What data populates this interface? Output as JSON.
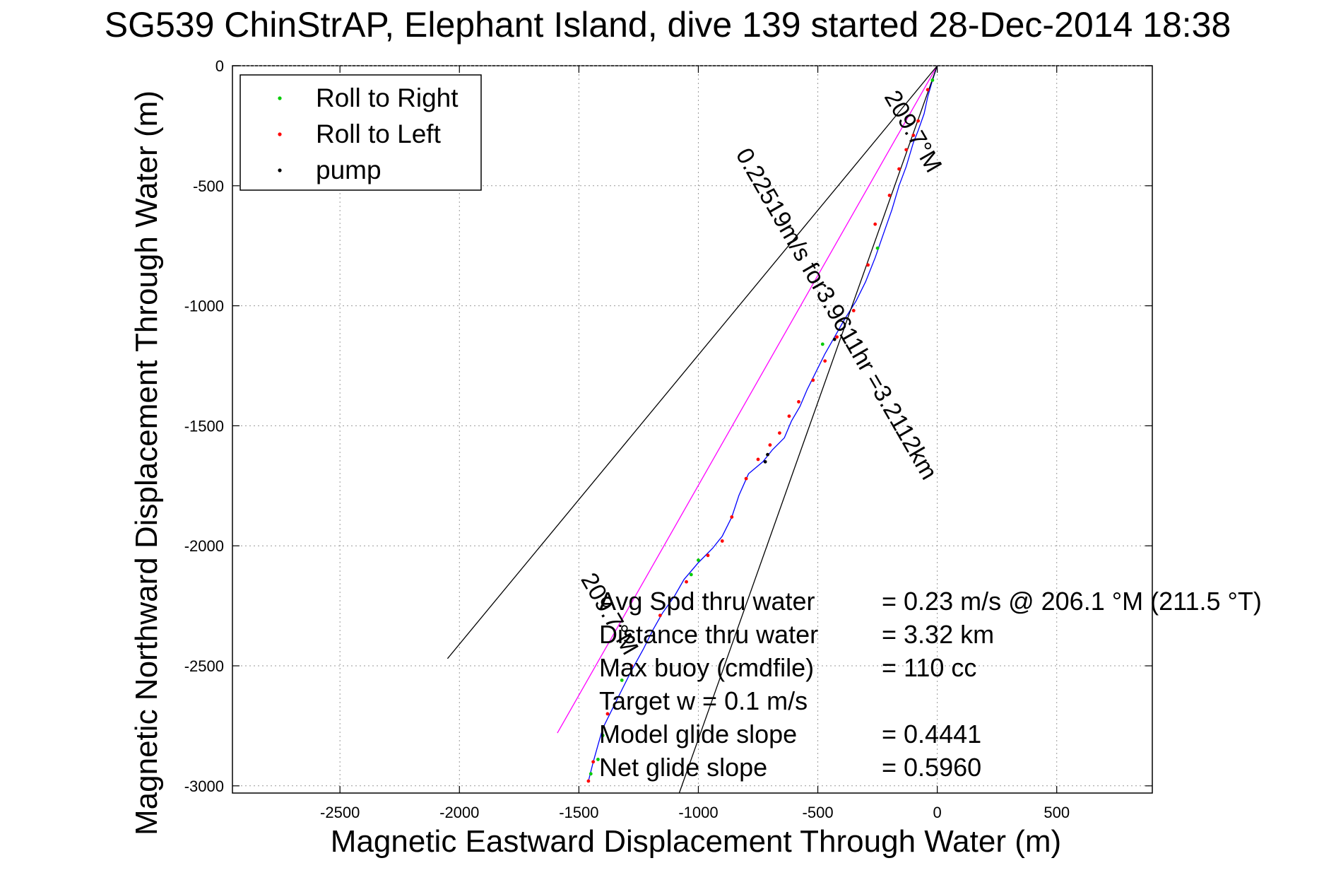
{
  "chart_data": {
    "type": "line",
    "title": "SG539 ChinStrAP, Elephant Island, dive 139 started 28-Dec-2014 18:38",
    "xlabel": "Magnetic Eastward Displacement Through Water (m)",
    "ylabel": "Magnetic Northward Displacement Through Water (m)",
    "xlim": [
      -2950,
      900
    ],
    "ylim": [
      -3030,
      0
    ],
    "xticks": [
      -2500,
      -2000,
      -1500,
      -1000,
      -500,
      0,
      500
    ],
    "yticks": [
      0,
      -500,
      -1000,
      -1500,
      -2000,
      -2500,
      -3000
    ],
    "grid": true,
    "legend_position": "top-left",
    "legend": [
      {
        "label": "Roll to Right",
        "color": "#00cc00"
      },
      {
        "label": "Roll to Left",
        "color": "#ff0000"
      },
      {
        "label": "pump",
        "color": "#000000"
      }
    ],
    "series": [
      {
        "name": "track",
        "color": "#0000ff",
        "points": [
          [
            0,
            0
          ],
          [
            -20,
            -60
          ],
          [
            -40,
            -130
          ],
          [
            -55,
            -200
          ],
          [
            -80,
            -270
          ],
          [
            -100,
            -320
          ],
          [
            -130,
            -420
          ],
          [
            -160,
            -500
          ],
          [
            -190,
            -600
          ],
          [
            -225,
            -700
          ],
          [
            -260,
            -800
          ],
          [
            -300,
            -900
          ],
          [
            -340,
            -980
          ],
          [
            -390,
            -1060
          ],
          [
            -430,
            -1130
          ],
          [
            -470,
            -1200
          ],
          [
            -510,
            -1280
          ],
          [
            -545,
            -1350
          ],
          [
            -575,
            -1420
          ],
          [
            -610,
            -1480
          ],
          [
            -640,
            -1550
          ],
          [
            -690,
            -1600
          ],
          [
            -730,
            -1650
          ],
          [
            -790,
            -1700
          ],
          [
            -830,
            -1790
          ],
          [
            -860,
            -1880
          ],
          [
            -900,
            -1960
          ],
          [
            -940,
            -2010
          ],
          [
            -1000,
            -2070
          ],
          [
            -1060,
            -2140
          ],
          [
            -1100,
            -2210
          ],
          [
            -1150,
            -2280
          ],
          [
            -1190,
            -2350
          ],
          [
            -1230,
            -2430
          ],
          [
            -1280,
            -2520
          ],
          [
            -1320,
            -2600
          ],
          [
            -1360,
            -2680
          ],
          [
            -1400,
            -2760
          ],
          [
            -1420,
            -2830
          ],
          [
            -1440,
            -2900
          ],
          [
            -1460,
            -2980
          ]
        ]
      },
      {
        "name": "heading-line",
        "color": "#ff00ff",
        "points": [
          [
            0,
            0
          ],
          [
            -1590,
            -2780
          ]
        ]
      },
      {
        "name": "cone-outer",
        "color": "#000000",
        "points": [
          [
            0,
            0
          ],
          [
            -2050,
            -2470
          ]
        ]
      },
      {
        "name": "cone-inner",
        "color": "#000000",
        "points": [
          [
            0,
            0
          ],
          [
            -1080,
            -3030
          ]
        ]
      }
    ],
    "markers": [
      {
        "type": "Roll to Right",
        "color": "#00cc00",
        "points": [
          [
            -20,
            -60
          ],
          [
            -250,
            -760
          ],
          [
            -480,
            -1160
          ],
          [
            -1000,
            -2060
          ],
          [
            -1030,
            -2120
          ],
          [
            -1320,
            -2560
          ],
          [
            -1400,
            -2790
          ],
          [
            -1420,
            -2890
          ],
          [
            -1450,
            -2950
          ]
        ]
      },
      {
        "type": "Roll to Left",
        "color": "#ff0000",
        "points": [
          [
            -40,
            -100
          ],
          [
            -80,
            -230
          ],
          [
            -100,
            -290
          ],
          [
            -130,
            -350
          ],
          [
            -160,
            -430
          ],
          [
            -200,
            -540
          ],
          [
            -260,
            -660
          ],
          [
            -290,
            -830
          ],
          [
            -350,
            -1020
          ],
          [
            -420,
            -1130
          ],
          [
            -470,
            -1230
          ],
          [
            -520,
            -1310
          ],
          [
            -580,
            -1400
          ],
          [
            -620,
            -1460
          ],
          [
            -660,
            -1530
          ],
          [
            -700,
            -1580
          ],
          [
            -750,
            -1640
          ],
          [
            -800,
            -1720
          ],
          [
            -860,
            -1880
          ],
          [
            -900,
            -1980
          ],
          [
            -960,
            -2040
          ],
          [
            -1050,
            -2150
          ],
          [
            -1160,
            -2290
          ],
          [
            -1280,
            -2500
          ],
          [
            -1380,
            -2700
          ],
          [
            -1440,
            -2900
          ],
          [
            -1460,
            -2980
          ]
        ]
      },
      {
        "type": "pump",
        "color": "#000000",
        "points": [
          [
            -710,
            -1620
          ],
          [
            -720,
            -1650
          ],
          [
            -430,
            -1140
          ]
        ]
      }
    ],
    "annotations": [
      {
        "text": "209.7°M",
        "x": -130,
        "y": -290,
        "rotate": 60
      },
      {
        "text": "0.22519m/s for3.9611hr =3.2112km",
        "x": -450,
        "y": -1050,
        "rotate": 60
      },
      {
        "text": "209.7°M",
        "x": -1400,
        "y": -2300,
        "rotate": 60
      }
    ],
    "stats": [
      {
        "label": "Avg Spd thru water",
        "value": "=  0.23 m/s @ 206.1 °M (211.5 °T)"
      },
      {
        "label": "Distance thru water",
        "value": "=  3.32 km"
      },
      {
        "label": "Max buoy (cmdfile)",
        "value": "= 110 cc"
      },
      {
        "label": "Target w    = 0.1 m/s",
        "value": ""
      },
      {
        "label": "Model glide slope",
        "value": "= 0.4441"
      },
      {
        "label": "Net glide slope",
        "value": "= 0.5960"
      }
    ]
  }
}
